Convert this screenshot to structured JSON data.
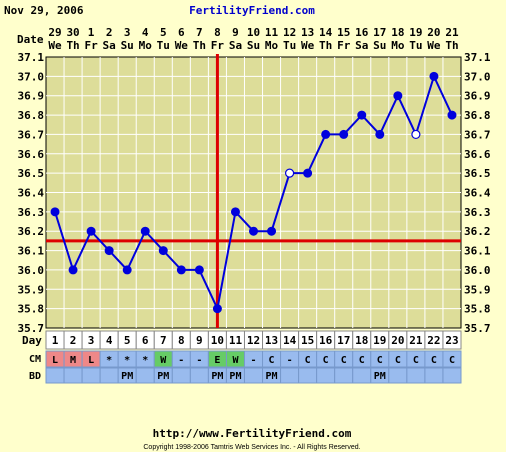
{
  "header": {
    "date": "Nov 29, 2006",
    "site": "FertilityFriend.com"
  },
  "footer": {
    "url": "http://www.FertilityFriend.com",
    "copyright": "Copyright 1998-2006 Tamtris Web Services Inc. - All Rights Reserved."
  },
  "labels": {
    "date_row": "Date",
    "day_row": "Day",
    "cm_row": "CM",
    "bd_row": "BD"
  },
  "colors": {
    "background": "#ffffcc",
    "plot_background": "#dddd99",
    "grid": "#ffffff",
    "line": "#0000dd",
    "coverline": "#dd0000",
    "header_blue": "#0000cc",
    "cm_red": "#ee8888",
    "cm_green": "#66cc66",
    "row_blue": "#99bbee"
  },
  "chart_data": {
    "type": "line",
    "title": "",
    "xlabel": "Day",
    "ylabel": "",
    "ylim": [
      35.7,
      37.1
    ],
    "yticks": [
      "37.1",
      "37.0",
      "36.9",
      "36.8",
      "36.7",
      "36.6",
      "36.5",
      "36.4",
      "36.3",
      "36.2",
      "36.1",
      "36.0",
      "35.9",
      "35.8",
      "35.7"
    ],
    "grid": true,
    "cycle_days": [
      1,
      2,
      3,
      4,
      5,
      6,
      7,
      8,
      9,
      10,
      11,
      12,
      13,
      14,
      15,
      16,
      17,
      18,
      19,
      20,
      21,
      22,
      23
    ],
    "dates": [
      "29",
      "30",
      "1",
      "2",
      "3",
      "4",
      "5",
      "6",
      "7",
      "8",
      "9",
      "10",
      "11",
      "12",
      "13",
      "14",
      "15",
      "16",
      "17",
      "18",
      "19",
      "20",
      "21"
    ],
    "weekdays": [
      "We",
      "Th",
      "Fr",
      "Sa",
      "Su",
      "Mo",
      "Tu",
      "We",
      "Th",
      "Fr",
      "Sa",
      "Su",
      "Mo",
      "Tu",
      "We",
      "Th",
      "Fr",
      "Sa",
      "Su",
      "Mo",
      "Tu",
      "We",
      "Th"
    ],
    "temps": [
      36.3,
      36.0,
      36.2,
      36.1,
      36.0,
      36.2,
      36.1,
      36.0,
      36.0,
      35.8,
      36.3,
      36.2,
      36.2,
      36.5,
      36.5,
      36.7,
      36.7,
      36.8,
      36.7,
      36.9,
      36.7,
      37.0,
      36.8
    ],
    "open_points": [
      14,
      21
    ],
    "coverline": 36.15,
    "ovulation_day": 10,
    "cervical_mucus": [
      "L",
      "M",
      "L",
      "*",
      "*",
      "*",
      "W",
      "-",
      "-",
      "E",
      "W",
      "-",
      "C",
      "-",
      "C",
      "C",
      "C",
      "C",
      "C",
      "C",
      "C",
      "C",
      "C"
    ],
    "intercourse": [
      "",
      "",
      "",
      "",
      "PM",
      "",
      "PM",
      "",
      "",
      "PM",
      "PM",
      "",
      "PM",
      "",
      "",
      "",
      "",
      "",
      "PM",
      "",
      "",
      "",
      ""
    ]
  }
}
